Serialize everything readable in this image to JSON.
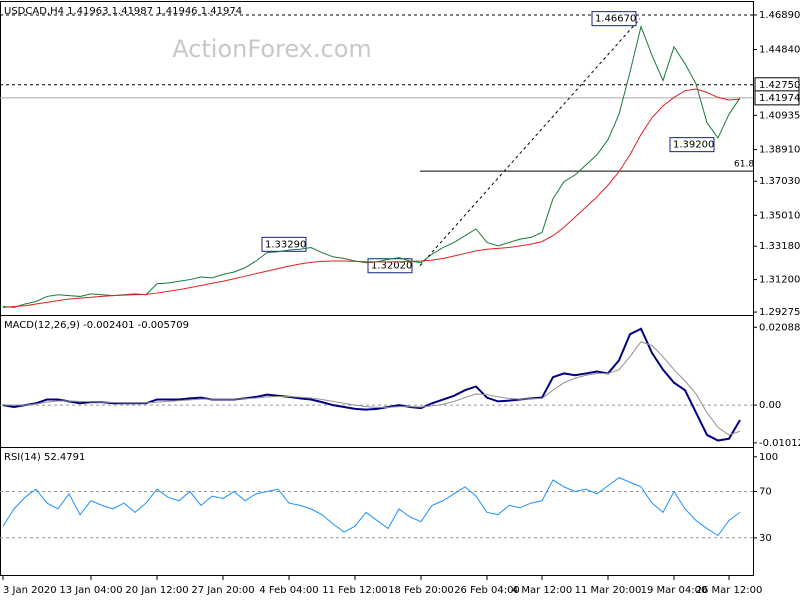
{
  "chart_data": [
    {
      "type": "line",
      "title": "USDCAD,H4  1.41963 1.41987 1.41946 1.41974",
      "watermark": "ActionForex.com",
      "series": [
        {
          "color": "#1a7a3a",
          "values": [
            1.296,
            1.2955,
            1.2975,
            1.299,
            1.302,
            1.303,
            1.3025,
            1.302,
            1.3035,
            1.303,
            1.3025,
            1.303,
            1.3035,
            1.303,
            1.3095,
            1.31,
            1.311,
            1.312,
            1.3135,
            1.313,
            1.315,
            1.3165,
            1.319,
            1.323,
            1.328,
            1.3285,
            1.3295,
            1.33,
            1.331,
            1.328,
            1.3255,
            1.3245,
            1.323,
            1.322,
            1.3225,
            1.324,
            1.325,
            1.323,
            1.322,
            1.327,
            1.331,
            1.334,
            1.338,
            1.342,
            1.334,
            1.332,
            1.334,
            1.336,
            1.337,
            1.34,
            1.36,
            1.37,
            1.374,
            1.38,
            1.386,
            1.395,
            1.41,
            1.435,
            1.462,
            1.445,
            1.43,
            1.45,
            1.44,
            1.428,
            1.405,
            1.396,
            1.41,
            1.4197
          ]
        },
        {
          "color": "#e02020",
          "values": [
            1.2955,
            1.296,
            1.2965,
            1.2975,
            1.2985,
            1.2995,
            1.3005,
            1.301,
            1.3015,
            1.302,
            1.3025,
            1.3028,
            1.303,
            1.3032,
            1.304,
            1.305,
            1.306,
            1.3072,
            1.3085,
            1.3098,
            1.311,
            1.3125,
            1.314,
            1.3155,
            1.317,
            1.3185,
            1.32,
            1.3212,
            1.3222,
            1.3228,
            1.323,
            1.323,
            1.3228,
            1.3226,
            1.3225,
            1.3225,
            1.3226,
            1.3228,
            1.323,
            1.3235,
            1.3245,
            1.326,
            1.3275,
            1.329,
            1.33,
            1.3305,
            1.331,
            1.332,
            1.333,
            1.3345,
            1.338,
            1.343,
            1.349,
            1.355,
            1.361,
            1.368,
            1.376,
            1.386,
            1.398,
            1.408,
            1.415,
            1.42,
            1.424,
            1.425,
            1.423,
            1.42,
            1.4185,
            1.419
          ]
        }
      ],
      "ylim": [
        1.2904,
        1.4748
      ],
      "yticks": [
        {
          "value": 1.4689,
          "label": "1.46890"
        },
        {
          "value": 1.4484,
          "label": "1.44840"
        },
        {
          "value": 1.40935,
          "label": "1.40935"
        },
        {
          "value": 1.3891,
          "label": "1.38910"
        },
        {
          "value": 1.3703,
          "label": "1.37030"
        },
        {
          "value": 1.3501,
          "label": "1.35010"
        },
        {
          "value": 1.3318,
          "label": "1.33180"
        },
        {
          "value": 1.312,
          "label": "1.31200"
        },
        1.29275
      ],
      "hlines": [
        {
          "value": 1.4689,
          "dashed": true
        },
        {
          "value": 1.4275,
          "label": "1.42750",
          "dashed": true
        },
        {
          "value": 1.41974,
          "label": "1.41974",
          "dashed": false
        }
      ],
      "annotations": [
        {
          "value": 1.4667,
          "label": "1.46670"
        },
        {
          "value": 1.3329,
          "label": "1.33290"
        },
        {
          "value": 1.3202,
          "label": "1.32020"
        },
        {
          "value": 1.392,
          "label": "1.39200"
        }
      ],
      "fib": {
        "value": 1.3763,
        "label": "61.8"
      }
    },
    {
      "type": "line",
      "title": "MACD(12,26,9) -0.002401 -0.005709",
      "series": [
        {
          "color": "#000080",
          "values": [
            0.0,
            -0.0005,
            0.0,
            0.0005,
            0.0015,
            0.0015,
            0.001,
            0.0005,
            0.0008,
            0.0008,
            0.0005,
            0.0005,
            0.0005,
            0.0005,
            0.0015,
            0.0015,
            0.0015,
            0.0018,
            0.002,
            0.0015,
            0.0015,
            0.0015,
            0.0018,
            0.0022,
            0.0028,
            0.0025,
            0.0022,
            0.0018,
            0.0015,
            0.0008,
            0.0,
            -0.0005,
            -0.001,
            -0.0012,
            -0.001,
            -0.0005,
            0.0,
            -0.0005,
            -0.0008,
            0.0005,
            0.0015,
            0.0025,
            0.004,
            0.005,
            0.002,
            0.001,
            0.0012,
            0.0015,
            0.0018,
            0.002,
            0.0075,
            0.0085,
            0.008,
            0.0085,
            0.009,
            0.0085,
            0.012,
            0.019,
            0.0205,
            0.014,
            0.0095,
            0.006,
            0.004,
            -0.002,
            -0.008,
            -0.0095,
            -0.009,
            -0.004
          ]
        },
        {
          "color": "#909090",
          "values": [
            0.0,
            0.0,
            0.0,
            0.0003,
            0.0008,
            0.0011,
            0.0011,
            0.001,
            0.0009,
            0.0008,
            0.0007,
            0.0006,
            0.0006,
            0.0006,
            0.0008,
            0.001,
            0.0012,
            0.0014,
            0.0016,
            0.0016,
            0.0016,
            0.0016,
            0.0017,
            0.0019,
            0.0022,
            0.0023,
            0.0023,
            0.0021,
            0.0019,
            0.0015,
            0.001,
            0.0005,
            0.0,
            -0.0004,
            -0.0006,
            -0.0006,
            -0.0004,
            -0.0004,
            -0.0005,
            -0.0002,
            0.0002,
            0.001,
            0.002,
            0.003,
            0.0028,
            0.0022,
            0.0018,
            0.0016,
            0.0017,
            0.0018,
            0.004,
            0.006,
            0.0072,
            0.008,
            0.0085,
            0.0085,
            0.0095,
            0.013,
            0.017,
            0.016,
            0.013,
            0.0095,
            0.0065,
            0.003,
            -0.002,
            -0.006,
            -0.008,
            -0.007
          ]
        }
      ],
      "ylim": [
        -0.0115,
        0.0231
      ],
      "yticks": [
        0.020884,
        {
          "value": 0,
          "label": "0.00"
        },
        -0.010121
      ]
    },
    {
      "type": "line",
      "title": "RSI(14) 52.4791",
      "series": [
        {
          "color": "#1e90ff",
          "values": [
            40,
            55,
            65,
            72,
            60,
            55,
            68,
            50,
            62,
            58,
            55,
            60,
            52,
            60,
            72,
            65,
            62,
            70,
            58,
            66,
            64,
            70,
            62,
            68,
            70,
            72,
            60,
            58,
            55,
            50,
            42,
            35,
            40,
            52,
            45,
            38,
            55,
            48,
            44,
            58,
            62,
            68,
            74,
            66,
            52,
            50,
            58,
            56,
            60,
            62,
            80,
            74,
            70,
            72,
            68,
            75,
            82,
            78,
            74,
            60,
            52,
            70,
            55,
            45,
            38,
            32,
            45,
            52
          ]
        }
      ],
      "ylim": [
        -3,
        105
      ],
      "yticks": [
        100,
        70,
        30
      ],
      "categories": [
        "3 Jan 2020",
        null,
        null,
        null,
        null,
        null,
        null,
        null,
        "13 Jan 04:00",
        null,
        null,
        null,
        null,
        null,
        "20 Jan 12:00",
        null,
        null,
        null,
        null,
        null,
        "27 Jan 20:00",
        null,
        null,
        null,
        null,
        null,
        "4 Feb 04:00",
        null,
        null,
        null,
        null,
        null,
        "11 Feb 12:00",
        null,
        null,
        null,
        null,
        null,
        "18 Feb 20:00",
        null,
        null,
        null,
        null,
        null,
        "26 Feb 04:00",
        null,
        null,
        null,
        null,
        "4 Mar 12:00",
        null,
        null,
        null,
        null,
        null,
        "11 Mar 20:00",
        null,
        null,
        null,
        null,
        null,
        "19 Mar 04:00",
        null,
        null,
        null,
        null,
        "26 Mar 12:00",
        null
      ]
    }
  ]
}
